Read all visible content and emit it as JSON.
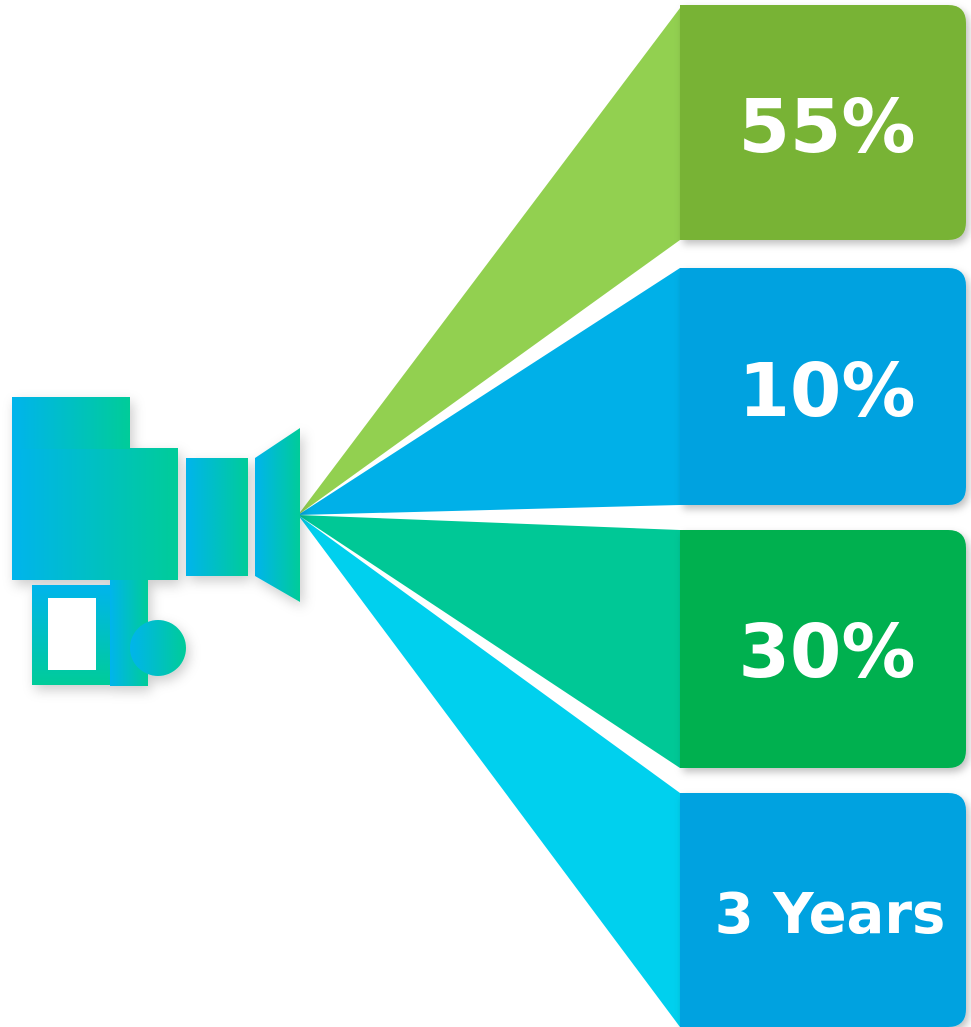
{
  "panels": [
    {
      "label": "55%",
      "beam_color": "#92D050",
      "box_color": "#78B335"
    },
    {
      "label": "10%",
      "beam_color": "#00B0E8",
      "box_color": "#00A2E0"
    },
    {
      "label": "30%",
      "beam_color": "#00C896",
      "box_color": "#00B050"
    },
    {
      "label": "3 Years",
      "beam_color": "#00D0EE",
      "box_color": "#00A2E0"
    }
  ],
  "camera": {
    "icon": "video-camera-icon",
    "gradient_from": "#00B4EC",
    "gradient_to": "#00CC99"
  }
}
